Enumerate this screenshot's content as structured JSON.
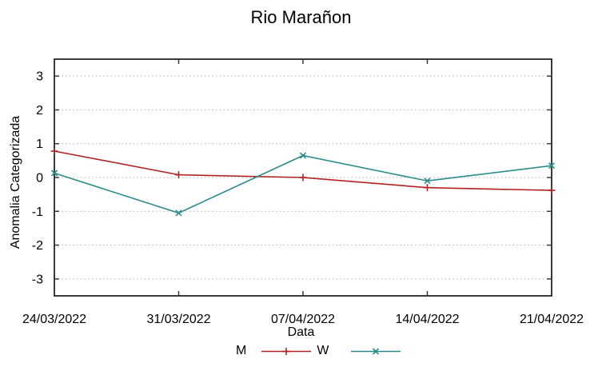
{
  "chart_data": {
    "type": "line",
    "title": "Rio Marañon",
    "xlabel": "Data",
    "ylabel": "Anomalia Categorizada",
    "categories": [
      "24/03/2022",
      "31/03/2022",
      "07/04/2022",
      "14/04/2022",
      "21/04/2022"
    ],
    "series": [
      {
        "name": "M",
        "color": "#b22222",
        "marker": "plus",
        "values": [
          0.78,
          0.08,
          0.0,
          -0.3,
          -0.38
        ]
      },
      {
        "name": "W",
        "color": "#2e8b8b",
        "marker": "cross",
        "values": [
          0.13,
          -1.05,
          0.65,
          -0.1,
          0.35
        ]
      }
    ],
    "yticks": [
      -3,
      -2,
      -1,
      0,
      1,
      2,
      3
    ],
    "ylim": [
      -3.5,
      3.5
    ],
    "grid": true,
    "grid_style": "dotted",
    "grid_color": "#b0b0b0",
    "axis_color": "#3a3a3a",
    "text_color": "#000000",
    "background": "#ffffff",
    "legend_position": "bottom-center"
  }
}
